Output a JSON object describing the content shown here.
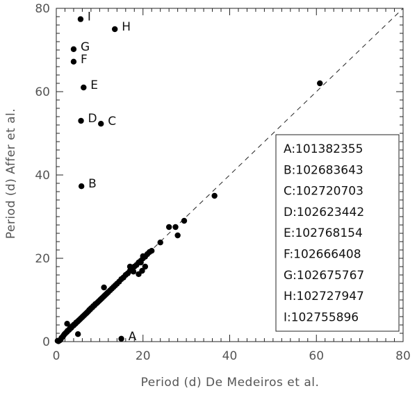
{
  "chart_data": {
    "type": "scatter",
    "xlabel": "Period (d) De Medeiros et al.",
    "ylabel": "Period (d) Affer et al.",
    "xlim": [
      0,
      80
    ],
    "ylim": [
      0,
      80
    ],
    "xticks": [
      0,
      20,
      40,
      60,
      80
    ],
    "yticks": [
      0,
      20,
      40,
      60,
      80
    ],
    "reference_line": {
      "type": "y=x",
      "style": "dashed"
    },
    "labeled_points": [
      {
        "label": "A",
        "x": 15.0,
        "y": 0.7
      },
      {
        "label": "B",
        "x": 5.8,
        "y": 37.3
      },
      {
        "label": "C",
        "x": 10.3,
        "y": 52.3
      },
      {
        "label": "D",
        "x": 5.7,
        "y": 53.0
      },
      {
        "label": "E",
        "x": 6.3,
        "y": 61.0
      },
      {
        "label": "F",
        "x": 4.0,
        "y": 67.2
      },
      {
        "label": "G",
        "x": 4.0,
        "y": 70.2
      },
      {
        "label": "H",
        "x": 13.5,
        "y": 75.0
      },
      {
        "label": "I",
        "x": 5.6,
        "y": 77.4
      }
    ],
    "points": [
      [
        0.3,
        0.2
      ],
      [
        0.5,
        0.1
      ],
      [
        0.8,
        0.3
      ],
      [
        1.0,
        0.5
      ],
      [
        1.2,
        0.9
      ],
      [
        1.5,
        1.2
      ],
      [
        1.7,
        1.5
      ],
      [
        1.9,
        1.8
      ],
      [
        2.1,
        2.0
      ],
      [
        2.3,
        2.2
      ],
      [
        2.5,
        2.4
      ],
      [
        2.6,
        2.6
      ],
      [
        2.8,
        2.7
      ],
      [
        3.0,
        2.9
      ],
      [
        3.1,
        3.1
      ],
      [
        3.3,
        3.2
      ],
      [
        3.5,
        3.4
      ],
      [
        3.6,
        3.6
      ],
      [
        3.8,
        3.8
      ],
      [
        4.0,
        3.9
      ],
      [
        4.1,
        4.1
      ],
      [
        4.3,
        4.2
      ],
      [
        4.5,
        4.4
      ],
      [
        4.6,
        4.6
      ],
      [
        4.8,
        4.7
      ],
      [
        5.0,
        4.9
      ],
      [
        5.2,
        5.1
      ],
      [
        5.4,
        5.3
      ],
      [
        5.6,
        5.5
      ],
      [
        5.8,
        5.7
      ],
      [
        6.0,
        5.9
      ],
      [
        6.2,
        6.1
      ],
      [
        6.4,
        6.3
      ],
      [
        6.6,
        6.5
      ],
      [
        6.8,
        6.7
      ],
      [
        7.0,
        6.9
      ],
      [
        7.2,
        7.1
      ],
      [
        7.4,
        7.3
      ],
      [
        7.6,
        7.6
      ],
      [
        7.8,
        7.7
      ],
      [
        8.0,
        8.0
      ],
      [
        8.3,
        8.2
      ],
      [
        8.5,
        8.5
      ],
      [
        8.8,
        8.7
      ],
      [
        9.0,
        9.0
      ],
      [
        9.3,
        9.2
      ],
      [
        9.6,
        9.5
      ],
      [
        9.9,
        9.8
      ],
      [
        10.2,
        10.1
      ],
      [
        10.5,
        10.4
      ],
      [
        10.8,
        10.7
      ],
      [
        11.1,
        11.0
      ],
      [
        11.4,
        11.3
      ],
      [
        11.7,
        11.6
      ],
      [
        12.0,
        11.9
      ],
      [
        12.4,
        12.3
      ],
      [
        12.8,
        12.7
      ],
      [
        13.2,
        13.1
      ],
      [
        13.6,
        13.5
      ],
      [
        14.0,
        13.9
      ],
      [
        14.5,
        14.4
      ],
      [
        15.0,
        15.0
      ],
      [
        15.5,
        15.4
      ],
      [
        16.0,
        16.0
      ],
      [
        16.5,
        16.4
      ],
      [
        17.0,
        17.0
      ],
      [
        17.5,
        17.4
      ],
      [
        18.0,
        18.0
      ],
      [
        18.5,
        18.4
      ],
      [
        19.0,
        19.0
      ],
      [
        19.5,
        19.4
      ],
      [
        20.0,
        20.0
      ],
      [
        20.5,
        20.4
      ],
      [
        21.0,
        21.0
      ],
      [
        21.5,
        21.5
      ],
      [
        22.0,
        21.8
      ],
      [
        2.5,
        4.3
      ],
      [
        5.0,
        1.8
      ],
      [
        11.0,
        13.0
      ],
      [
        17.0,
        18.0
      ],
      [
        19.0,
        16.2
      ],
      [
        19.8,
        17.0
      ],
      [
        20.5,
        18.0
      ],
      [
        17.8,
        16.8
      ],
      [
        19.5,
        19.0
      ],
      [
        20.0,
        20.5
      ],
      [
        24.0,
        23.8
      ],
      [
        26.0,
        27.5
      ],
      [
        27.5,
        27.5
      ],
      [
        28.0,
        25.5
      ],
      [
        29.5,
        29.0
      ],
      [
        36.5,
        35.0
      ],
      [
        60.8,
        62.0
      ]
    ]
  }
}
